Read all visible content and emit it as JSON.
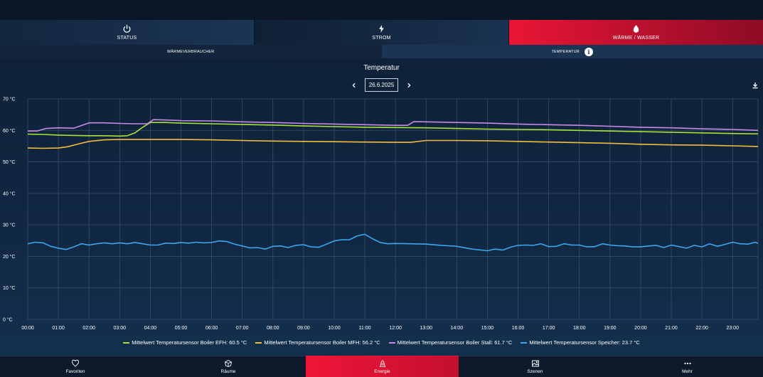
{
  "main_tabs": [
    {
      "label": "STATUS",
      "icon": "power-icon"
    },
    {
      "label": "STROM",
      "icon": "lightning-icon"
    },
    {
      "label": "WÄRME / WASSER",
      "icon": "water-drop-icon",
      "active": true
    }
  ],
  "sub_tabs": [
    {
      "label": "WÄRMEVERBRAUCHER"
    },
    {
      "label": "TEMPERATUR",
      "icon": "info-icon",
      "active": true
    }
  ],
  "chart_header": {
    "title": "Temperatur",
    "date": "26.6.2025"
  },
  "chart_data": {
    "type": "line",
    "title": "Temperatur",
    "x": [
      "00:00",
      "01:00",
      "02:00",
      "03:00",
      "04:00",
      "05:00",
      "06:00",
      "07:00",
      "08:00",
      "09:00",
      "10:00",
      "11:00",
      "12:00",
      "13:00",
      "14:00",
      "15:00",
      "16:00",
      "17:00",
      "18:00",
      "19:00",
      "20:00",
      "21:00",
      "22:00",
      "23:00"
    ],
    "y_ticks": [
      "0 °C",
      "10 °C",
      "20 °C",
      "30 °C",
      "40 °C",
      "50 °C",
      "60 °C",
      "70 °C"
    ],
    "ylim": [
      0,
      70
    ],
    "xlim_hours": [
      0,
      23.83
    ],
    "grid": true,
    "legend_position": "bottom",
    "series": [
      {
        "name": "Mittelwert Temperatursensor Boiler EFH: 60.5 °C",
        "color": "#a6e13a",
        "points": [
          [
            0,
            58.8
          ],
          [
            0.5,
            58.7
          ],
          [
            1,
            58.5
          ],
          [
            1.5,
            58.4
          ],
          [
            2,
            58.3
          ],
          [
            2.5,
            58.3
          ],
          [
            3,
            58.2
          ],
          [
            3.25,
            58.3
          ],
          [
            3.5,
            59.2
          ],
          [
            3.75,
            61.0
          ],
          [
            4,
            62.5
          ],
          [
            4.5,
            62.5
          ],
          [
            5,
            62.3
          ],
          [
            6,
            62.1
          ],
          [
            7,
            61.9
          ],
          [
            8,
            61.7
          ],
          [
            9,
            61.4
          ],
          [
            10,
            61.2
          ],
          [
            11,
            61.0
          ],
          [
            12,
            60.9
          ],
          [
            13,
            60.8
          ],
          [
            14,
            60.6
          ],
          [
            15,
            60.4
          ],
          [
            16,
            60.3
          ],
          [
            17,
            60.2
          ],
          [
            18,
            60.0
          ],
          [
            19,
            59.8
          ],
          [
            20,
            59.6
          ],
          [
            21,
            59.4
          ],
          [
            22,
            59.2
          ],
          [
            23,
            59.0
          ],
          [
            23.83,
            58.9
          ]
        ]
      },
      {
        "name": "Mittelwert Temperatursensor Boiler MFH: 56.2 °C",
        "color": "#f5bd3b",
        "points": [
          [
            0,
            54.4
          ],
          [
            0.5,
            54.3
          ],
          [
            1,
            54.4
          ],
          [
            1.3,
            54.8
          ],
          [
            1.7,
            55.8
          ],
          [
            2,
            56.5
          ],
          [
            2.5,
            57.0
          ],
          [
            3,
            57.1
          ],
          [
            4,
            57.1
          ],
          [
            5,
            57.1
          ],
          [
            6,
            57.0
          ],
          [
            7,
            56.8
          ],
          [
            8,
            56.6
          ],
          [
            9,
            56.5
          ],
          [
            10,
            56.4
          ],
          [
            11,
            56.3
          ],
          [
            12,
            56.2
          ],
          [
            12.5,
            56.2
          ],
          [
            13,
            56.8
          ],
          [
            14,
            56.8
          ],
          [
            15,
            56.7
          ],
          [
            16,
            56.5
          ],
          [
            17,
            56.3
          ],
          [
            18,
            56.1
          ],
          [
            19,
            55.9
          ],
          [
            20,
            55.6
          ],
          [
            21,
            55.4
          ],
          [
            22,
            55.3
          ],
          [
            23,
            55.1
          ],
          [
            23.83,
            54.9
          ]
        ]
      },
      {
        "name": "Mittelwert Temperatursensor Boiler Stall: 61.7 °C",
        "color": "#c98ae6",
        "points": [
          [
            0,
            59.8
          ],
          [
            0.3,
            59.8
          ],
          [
            0.6,
            60.6
          ],
          [
            1,
            60.8
          ],
          [
            1.5,
            60.7
          ],
          [
            2,
            62.4
          ],
          [
            2.5,
            62.4
          ],
          [
            3,
            62.2
          ],
          [
            3.5,
            62.1
          ],
          [
            3.9,
            62.1
          ],
          [
            4.1,
            63.4
          ],
          [
            4.5,
            63.3
          ],
          [
            5,
            63.1
          ],
          [
            6,
            63.0
          ],
          [
            7,
            62.7
          ],
          [
            8,
            62.5
          ],
          [
            9,
            62.2
          ],
          [
            10,
            62.0
          ],
          [
            11,
            61.8
          ],
          [
            12,
            61.6
          ],
          [
            12.4,
            61.6
          ],
          [
            12.6,
            62.8
          ],
          [
            13,
            62.7
          ],
          [
            14,
            62.5
          ],
          [
            15,
            62.3
          ],
          [
            16,
            62.0
          ],
          [
            17,
            61.8
          ],
          [
            18,
            61.6
          ],
          [
            19,
            61.3
          ],
          [
            20,
            61.0
          ],
          [
            21,
            60.8
          ],
          [
            22,
            60.5
          ],
          [
            23,
            60.3
          ],
          [
            23.83,
            60.0
          ]
        ]
      },
      {
        "name": "Mittelwert Temperatursensor Speicher: 23.7 °C",
        "color": "#3aa6f0",
        "points": [
          [
            0,
            24.0
          ],
          [
            0.25,
            24.5
          ],
          [
            0.5,
            24.3
          ],
          [
            0.75,
            23.2
          ],
          [
            1,
            22.6
          ],
          [
            1.25,
            22.2
          ],
          [
            1.5,
            23.0
          ],
          [
            1.75,
            24.0
          ],
          [
            2,
            23.6
          ],
          [
            2.25,
            24.0
          ],
          [
            2.5,
            24.3
          ],
          [
            2.75,
            24.0
          ],
          [
            3,
            24.3
          ],
          [
            3.25,
            24.0
          ],
          [
            3.5,
            24.4
          ],
          [
            3.75,
            24.0
          ],
          [
            4,
            23.6
          ],
          [
            4.25,
            23.6
          ],
          [
            4.5,
            24.2
          ],
          [
            4.75,
            24.1
          ],
          [
            5,
            24.4
          ],
          [
            5.25,
            24.2
          ],
          [
            5.5,
            24.5
          ],
          [
            5.75,
            24.3
          ],
          [
            6,
            24.4
          ],
          [
            6.25,
            24.9
          ],
          [
            6.5,
            24.7
          ],
          [
            6.75,
            23.9
          ],
          [
            7,
            23.3
          ],
          [
            7.25,
            22.7
          ],
          [
            7.5,
            22.8
          ],
          [
            7.75,
            22.3
          ],
          [
            8,
            23.2
          ],
          [
            8.25,
            23.3
          ],
          [
            8.5,
            22.8
          ],
          [
            8.75,
            23.5
          ],
          [
            9,
            23.7
          ],
          [
            9.25,
            23.0
          ],
          [
            9.5,
            22.9
          ],
          [
            9.75,
            23.9
          ],
          [
            10,
            24.9
          ],
          [
            10.25,
            25.3
          ],
          [
            10.5,
            25.3
          ],
          [
            10.75,
            26.5
          ],
          [
            11,
            27.0
          ],
          [
            11.25,
            25.6
          ],
          [
            11.5,
            24.4
          ],
          [
            11.75,
            24.0
          ],
          [
            12,
            24.1
          ],
          [
            12.5,
            24.0
          ],
          [
            13,
            23.9
          ],
          [
            13.5,
            23.5
          ],
          [
            14,
            23.2
          ],
          [
            14.5,
            22.3
          ],
          [
            15,
            21.8
          ],
          [
            15.25,
            22.3
          ],
          [
            15.5,
            22.0
          ],
          [
            15.75,
            22.9
          ],
          [
            16,
            23.5
          ],
          [
            16.25,
            23.6
          ],
          [
            16.5,
            23.5
          ],
          [
            16.75,
            24.0
          ],
          [
            17,
            23.1
          ],
          [
            17.25,
            23.2
          ],
          [
            17.5,
            24.0
          ],
          [
            17.75,
            23.6
          ],
          [
            18,
            23.6
          ],
          [
            18.25,
            23.0
          ],
          [
            18.5,
            23.1
          ],
          [
            18.75,
            24.0
          ],
          [
            19,
            23.6
          ],
          [
            19.25,
            23.4
          ],
          [
            19.5,
            23.3
          ],
          [
            19.75,
            23.0
          ],
          [
            20,
            23.0
          ],
          [
            20.25,
            23.3
          ],
          [
            20.5,
            23.5
          ],
          [
            20.75,
            22.8
          ],
          [
            21,
            23.6
          ],
          [
            21.25,
            23.1
          ],
          [
            21.5,
            22.6
          ],
          [
            21.75,
            23.5
          ],
          [
            22,
            23.0
          ],
          [
            22.25,
            24.0
          ],
          [
            22.5,
            23.2
          ],
          [
            22.75,
            23.8
          ],
          [
            23,
            24.5
          ],
          [
            23.25,
            24.0
          ],
          [
            23.5,
            23.9
          ],
          [
            23.75,
            24.5
          ],
          [
            23.83,
            24.1
          ]
        ]
      }
    ]
  },
  "bottom_nav": [
    {
      "label": "Favoriten",
      "icon": "heart-icon"
    },
    {
      "label": "Räume",
      "icon": "rooms-icon"
    },
    {
      "label": "Energie",
      "icon": "energy-icon",
      "active": true
    },
    {
      "label": "Szenen",
      "icon": "scenes-icon"
    },
    {
      "label": "Mehr",
      "icon": "more-icon"
    }
  ],
  "colors": {
    "accent": "#ea1536",
    "background": "#0d1e33"
  }
}
